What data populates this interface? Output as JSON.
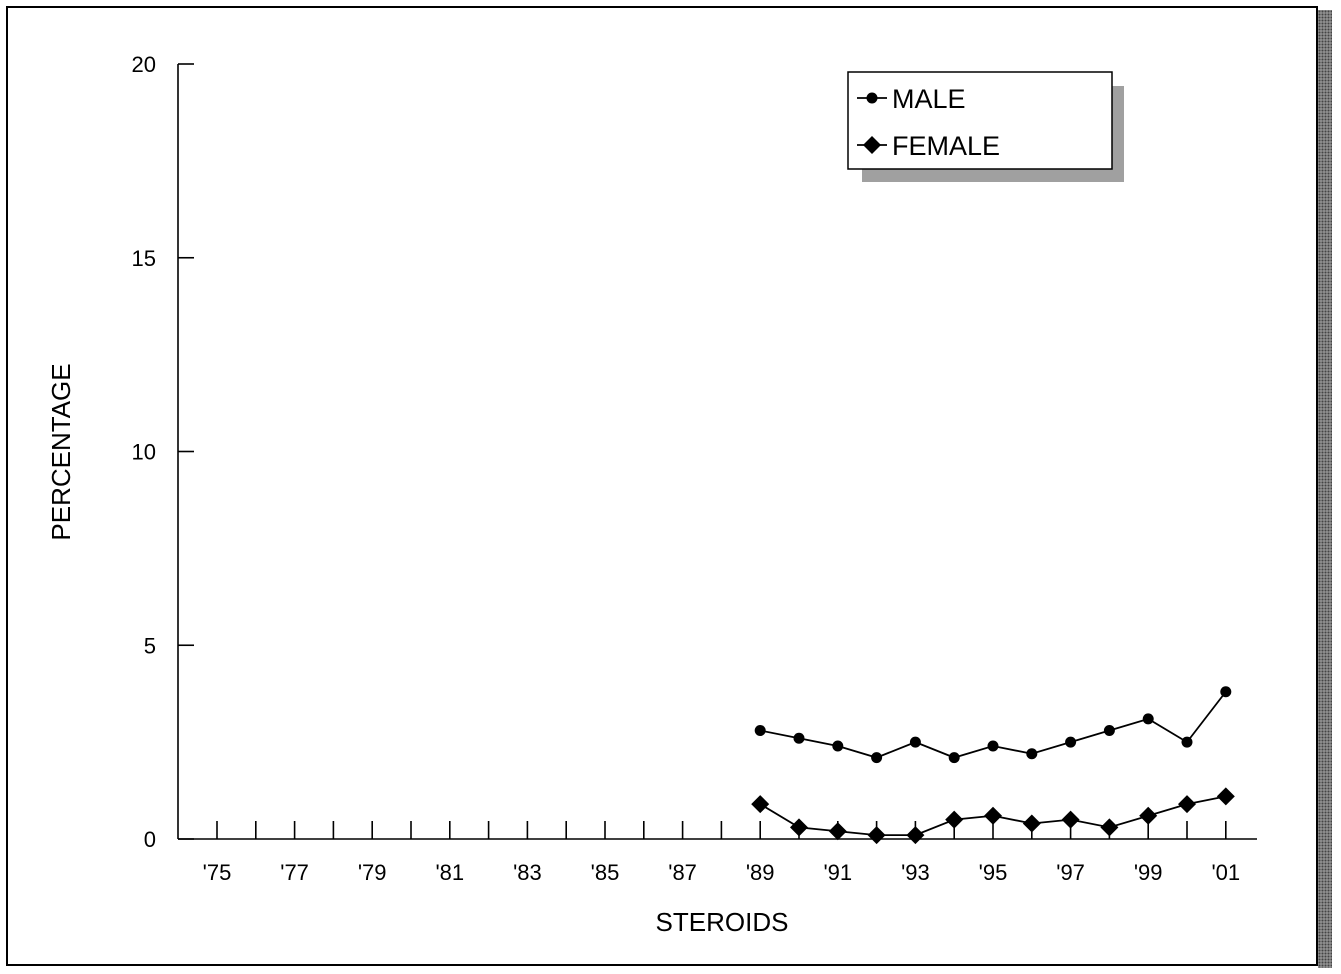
{
  "chart_data": {
    "type": "line",
    "xlabel": "STEROIDS",
    "ylabel": "PERCENTAGE",
    "ylim": [
      0,
      20
    ],
    "yticks": [
      0,
      5,
      10,
      15,
      20
    ],
    "xlim": [
      1975,
      2002
    ],
    "x_tick_labels": [
      "'75",
      "'77",
      "'79",
      "'81",
      "'83",
      "'85",
      "'87",
      "'89",
      "'91",
      "'93",
      "'95",
      "'97",
      "'99",
      "'01"
    ],
    "x_tick_years": [
      1975,
      1977,
      1979,
      1981,
      1983,
      1985,
      1987,
      1989,
      1991,
      1993,
      1995,
      1997,
      1999,
      2001
    ],
    "legend_position": "top-right",
    "grid": false,
    "series": [
      {
        "name": "MALE",
        "marker": "circle",
        "x": [
          1989,
          1990,
          1991,
          1992,
          1993,
          1994,
          1995,
          1996,
          1997,
          1998,
          1999,
          2000,
          2001
        ],
        "values": [
          2.8,
          2.6,
          2.4,
          2.1,
          2.5,
          2.1,
          2.4,
          2.2,
          2.5,
          2.8,
          3.1,
          2.5,
          3.8
        ]
      },
      {
        "name": "FEMALE",
        "marker": "diamond",
        "x": [
          1989,
          1990,
          1991,
          1992,
          1993,
          1994,
          1995,
          1996,
          1997,
          1998,
          1999,
          2000,
          2001
        ],
        "values": [
          0.9,
          0.3,
          0.2,
          0.1,
          0.1,
          0.5,
          0.6,
          0.4,
          0.5,
          0.3,
          0.6,
          0.9,
          1.1
        ]
      }
    ]
  }
}
